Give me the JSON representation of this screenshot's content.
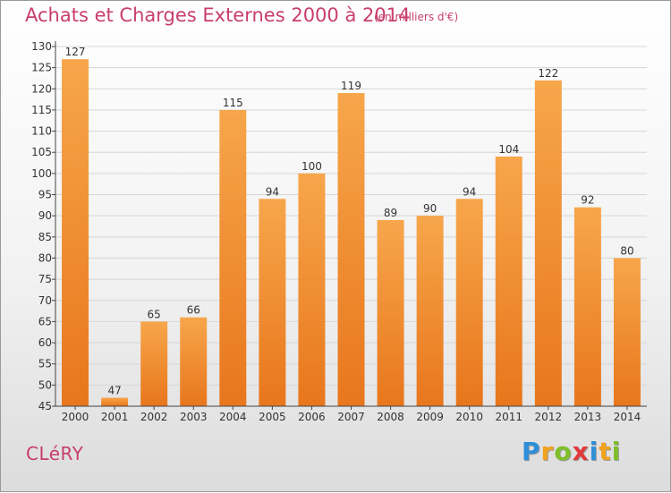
{
  "header": {
    "title": "Achats et Charges Externes 2000 à 2014",
    "unit": "(en milliers d'€)"
  },
  "footer": {
    "commune": "CLéRY",
    "brand_letters": [
      {
        "char": "P",
        "color": "#2f8fd8"
      },
      {
        "char": "r",
        "color": "#f2a21c"
      },
      {
        "char": "o",
        "color": "#7fbf2a"
      },
      {
        "char": "x",
        "color": "#e03a3a"
      },
      {
        "char": "i",
        "color": "#2f8fd8"
      },
      {
        "char": "t",
        "color": "#f2a21c"
      },
      {
        "char": "i",
        "color": "#7fbf2a"
      }
    ]
  },
  "chart_data": {
    "type": "bar",
    "title": "Achats et Charges Externes 2000 à 2014",
    "unit_label": "(en milliers d'€)",
    "xlabel": "",
    "ylabel": "",
    "categories": [
      "2000",
      "2001",
      "2002",
      "2003",
      "2004",
      "2005",
      "2006",
      "2007",
      "2008",
      "2009",
      "2010",
      "2011",
      "2012",
      "2013",
      "2014"
    ],
    "values": [
      127,
      47,
      65,
      66,
      115,
      94,
      100,
      119,
      89,
      90,
      94,
      104,
      122,
      92,
      80
    ],
    "ylim": [
      45,
      130
    ],
    "yticks": [
      45,
      50,
      55,
      60,
      65,
      70,
      75,
      80,
      85,
      90,
      95,
      100,
      105,
      110,
      115,
      120,
      125,
      130
    ],
    "grid": true,
    "colors": {
      "bar_light": "#f7a64b",
      "bar_dark": "#e8761c",
      "grid": "#d6d6d6",
      "axis": "#444444"
    }
  }
}
